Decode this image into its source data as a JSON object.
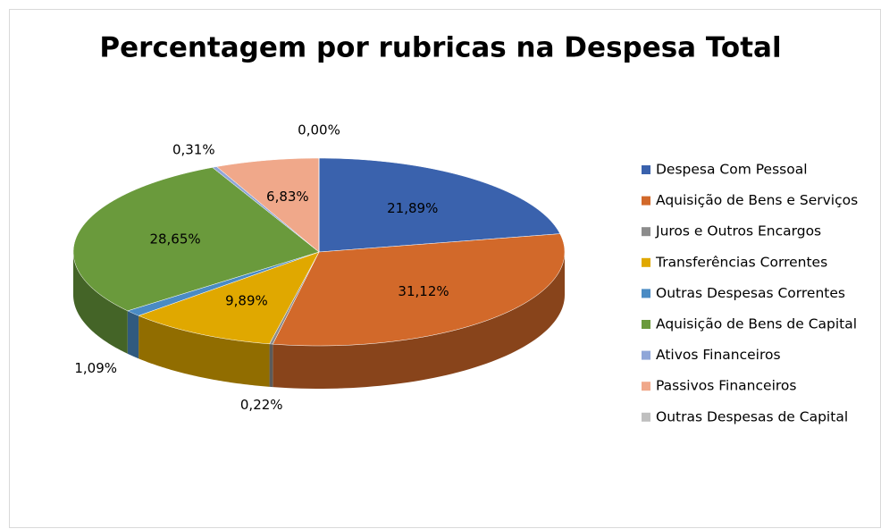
{
  "chart_data": {
    "type": "pie3d",
    "title": "Percentagem por rubricas na Despesa Total",
    "categories": [
      "Despesa Com Pessoal",
      "Aquisição de Bens e Serviços",
      "Juros e Outros Encargos",
      "Transferências Correntes",
      "Outras Despesas Correntes",
      "Aquisição de Bens de Capital",
      "Ativos Financeiros",
      "Passivos Financeiros",
      "Outras Despesas de Capital"
    ],
    "values": [
      21.89,
      31.12,
      0.22,
      9.89,
      1.09,
      28.65,
      0.31,
      6.83,
      0.0
    ],
    "value_labels": [
      "21,89%",
      "31,12%",
      "0,22%",
      "9,89%",
      "1,09%",
      "28,65%",
      "0,31%",
      "6,83%",
      "0,00%"
    ],
    "colors": [
      "#3a62ad",
      "#d2692a",
      "#8c8c8c",
      "#e0a800",
      "#4a8bc4",
      "#6a9a3c",
      "#8fa6d8",
      "#f0a88a",
      "#bfbfbf"
    ],
    "legend": "right"
  }
}
